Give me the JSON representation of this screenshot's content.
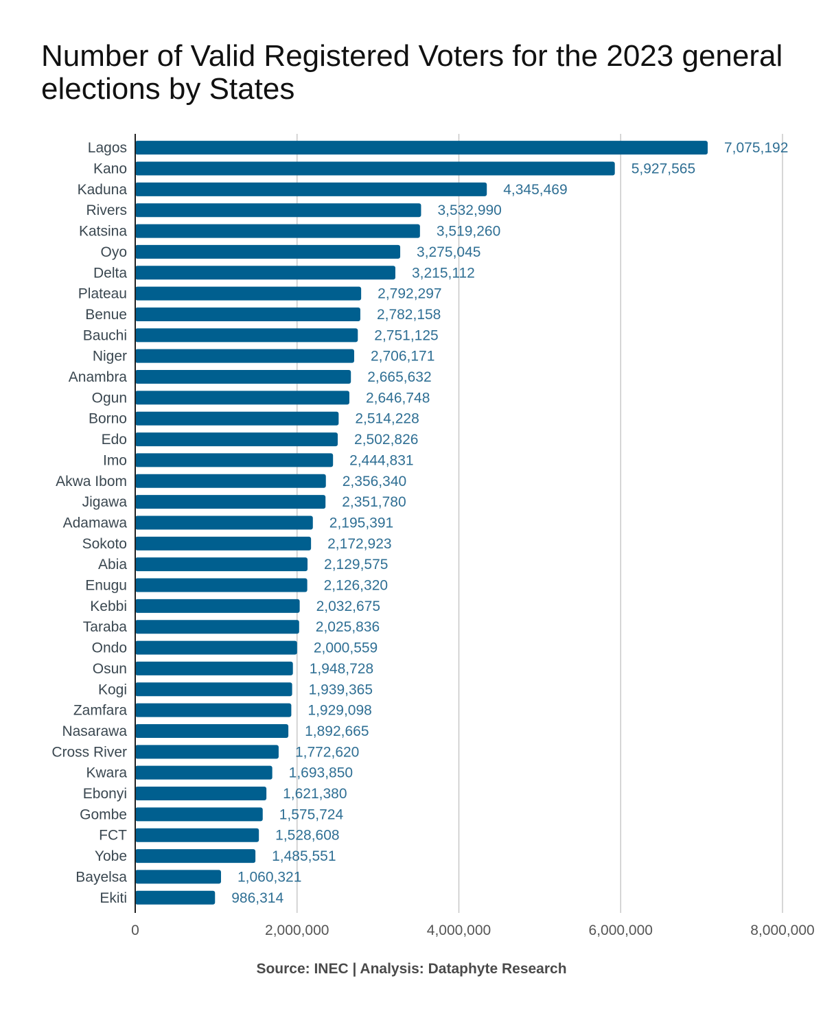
{
  "chart_data": {
    "type": "bar",
    "orientation": "horizontal",
    "title": "Number of Valid Registered Voters for the 2023 general elections by States",
    "source": "Source: INEC | Analysis: Dataphyte Research",
    "xlabel": "",
    "ylabel": "",
    "xlim": [
      0,
      8000000
    ],
    "xticks": [
      0,
      2000000,
      4000000,
      6000000,
      8000000
    ],
    "xtick_labels": [
      "0",
      "2,000,000",
      "4,000,000",
      "6,000,000",
      "8,000,000"
    ],
    "grid": "vertical",
    "bar_color": "#005f8f",
    "label_color": "#2f6f94",
    "categories": [
      "Lagos",
      "Kano",
      "Kaduna",
      "Rivers",
      "Katsina",
      "Oyo",
      "Delta",
      "Plateau",
      "Benue",
      "Bauchi",
      "Niger",
      "Anambra",
      "Ogun",
      "Borno",
      "Edo",
      "Imo",
      "Akwa Ibom",
      "Jigawa",
      "Adamawa",
      "Sokoto",
      "Abia",
      "Enugu",
      "Kebbi",
      "Taraba",
      "Ondo",
      "Osun",
      "Kogi",
      "Zamfara",
      "Nasarawa",
      "Cross River",
      "Kwara",
      "Ebonyi",
      "Gombe",
      "FCT",
      "Yobe",
      "Bayelsa",
      "Ekiti"
    ],
    "values": [
      7075192,
      5927565,
      4345469,
      3532990,
      3519260,
      3275045,
      3215112,
      2792297,
      2782158,
      2751125,
      2706171,
      2665632,
      2646748,
      2514228,
      2502826,
      2444831,
      2356340,
      2351780,
      2195391,
      2172923,
      2129575,
      2126320,
      2032675,
      2025836,
      2000559,
      1948728,
      1939365,
      1929098,
      1892665,
      1772620,
      1693850,
      1621380,
      1575724,
      1528608,
      1485551,
      1060321,
      986314
    ],
    "value_labels": [
      "7,075,192",
      "5,927,565",
      "4,345,469",
      "3,532,990",
      "3,519,260",
      "3,275,045",
      "3,215,112",
      "2,792,297",
      "2,782,158",
      "2,751,125",
      "2,706,171",
      "2,665,632",
      "2,646,748",
      "2,514,228",
      "2,502,826",
      "2,444,831",
      "2,356,340",
      "2,351,780",
      "2,195,391",
      "2,172,923",
      "2,129,575",
      "2,126,320",
      "2,032,675",
      "2,025,836",
      "2,000,559",
      "1,948,728",
      "1,939,365",
      "1,929,098",
      "1,892,665",
      "1,772,620",
      "1,693,850",
      "1,621,380",
      "1,575,724",
      "1,528,608",
      "1,485,551",
      "1,060,321",
      "986,314"
    ]
  }
}
